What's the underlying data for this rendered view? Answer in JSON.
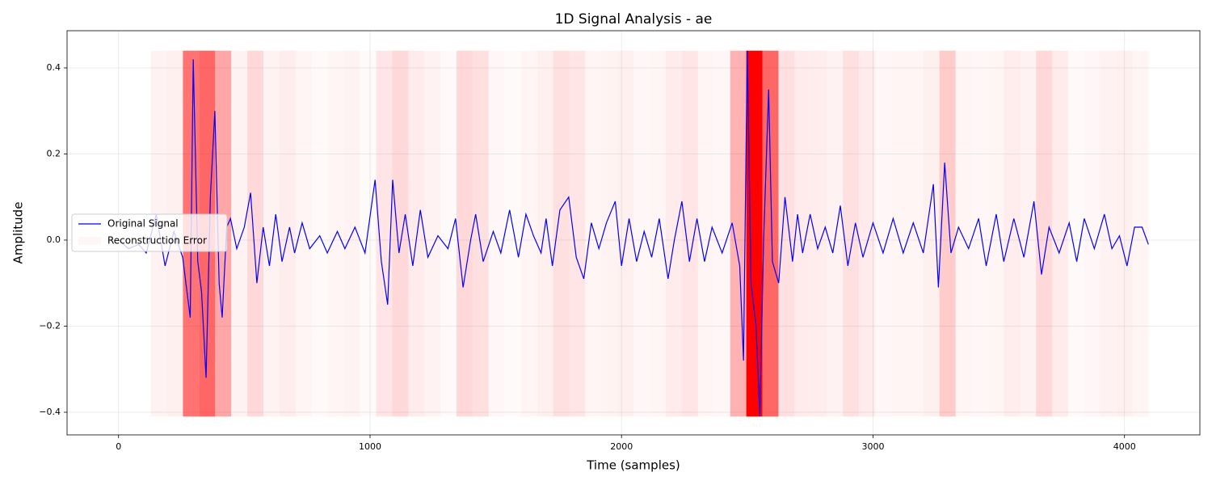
{
  "chart_data": {
    "type": "line",
    "title": "1D Signal Analysis - ae",
    "x_label": "Time (samples)",
    "y_label": "Amplitude",
    "xlim": [
      -204.75,
      4299.75
    ],
    "ylim": [
      -0.4526,
      0.4864
    ],
    "xticks": [
      0,
      1000,
      2000,
      3000,
      4000
    ],
    "yticks": [
      {
        "value": -0.4,
        "label": "−0.4"
      },
      {
        "value": -0.2,
        "label": "−0.2"
      },
      {
        "value": 0,
        "label": "0.0"
      },
      0.2,
      0.4
    ],
    "grid": true,
    "legend": "center left",
    "series": [
      {
        "name": "Original Signal",
        "color": "#0000ff",
        "x": [
          0,
          40,
          80,
          110,
          150,
          185,
          220,
          255,
          285,
          297,
          315,
          330,
          348,
          365,
          383,
          400,
          412,
          430,
          445,
          470,
          500,
          525,
          550,
          575,
          600,
          625,
          650,
          680,
          700,
          730,
          760,
          800,
          830,
          870,
          900,
          940,
          980,
          1020,
          1045,
          1070,
          1090,
          1115,
          1140,
          1170,
          1200,
          1230,
          1270,
          1310,
          1340,
          1370,
          1400,
          1420,
          1450,
          1490,
          1520,
          1555,
          1590,
          1620,
          1650,
          1680,
          1700,
          1725,
          1755,
          1790,
          1820,
          1850,
          1880,
          1910,
          1940,
          1975,
          2000,
          2030,
          2060,
          2090,
          2120,
          2150,
          2185,
          2210,
          2240,
          2270,
          2300,
          2330,
          2360,
          2400,
          2440,
          2470,
          2485,
          2500,
          2515,
          2535,
          2550,
          2565,
          2585,
          2600,
          2625,
          2650,
          2680,
          2700,
          2720,
          2750,
          2780,
          2810,
          2840,
          2870,
          2900,
          2930,
          2960,
          3000,
          3040,
          3080,
          3120,
          3160,
          3200,
          3240,
          3260,
          3285,
          3310,
          3340,
          3380,
          3420,
          3450,
          3490,
          3520,
          3560,
          3600,
          3640,
          3670,
          3700,
          3740,
          3780,
          3810,
          3840,
          3880,
          3920,
          3950,
          3980,
          4010,
          4040,
          4070,
          4095
        ],
        "values": [
          0.0,
          -0.02,
          -0.01,
          -0.03,
          0.06,
          -0.06,
          0.02,
          -0.04,
          -0.18,
          0.42,
          -0.05,
          -0.12,
          -0.32,
          0.1,
          0.3,
          -0.1,
          -0.18,
          0.03,
          0.05,
          -0.02,
          0.03,
          0.11,
          -0.1,
          0.03,
          -0.06,
          0.06,
          -0.05,
          0.03,
          -0.03,
          0.04,
          -0.02,
          0.01,
          -0.03,
          0.02,
          -0.02,
          0.03,
          -0.03,
          0.14,
          -0.05,
          -0.15,
          0.14,
          -0.03,
          0.06,
          -0.06,
          0.07,
          -0.04,
          0.01,
          -0.02,
          0.05,
          -0.11,
          0.0,
          0.06,
          -0.05,
          0.02,
          -0.03,
          0.07,
          -0.04,
          0.06,
          0.01,
          -0.03,
          0.05,
          -0.06,
          0.07,
          0.1,
          -0.04,
          -0.09,
          0.04,
          -0.02,
          0.04,
          0.09,
          -0.06,
          0.05,
          -0.05,
          0.02,
          -0.04,
          0.05,
          -0.09,
          0.0,
          0.09,
          -0.05,
          0.05,
          -0.05,
          0.03,
          -0.03,
          0.04,
          -0.06,
          -0.28,
          0.44,
          -0.1,
          -0.2,
          -0.41,
          0.0,
          0.35,
          -0.05,
          -0.1,
          0.1,
          -0.05,
          0.06,
          -0.03,
          0.06,
          -0.02,
          0.03,
          -0.03,
          0.08,
          -0.06,
          0.04,
          -0.04,
          0.04,
          -0.03,
          0.05,
          -0.03,
          0.04,
          -0.03,
          0.13,
          -0.11,
          0.18,
          -0.03,
          0.03,
          -0.02,
          0.05,
          -0.06,
          0.06,
          -0.05,
          0.05,
          -0.04,
          0.09,
          -0.08,
          0.03,
          -0.03,
          0.04,
          -0.05,
          0.05,
          -0.02,
          0.06,
          -0.02,
          0.01,
          -0.06,
          0.03,
          0.03,
          -0.01
        ]
      },
      {
        "name": "Reconstruction Error",
        "color": "#ff0000",
        "bins": [
          128,
          192,
          256,
          320,
          384,
          448,
          512,
          576,
          640,
          704,
          768,
          832,
          896,
          960,
          1024,
          1088,
          1152,
          1216,
          1280,
          1344,
          1408,
          1472,
          1536,
          1600,
          1664,
          1728,
          1792,
          1856,
          1920,
          1984,
          2048,
          2112,
          2176,
          2240,
          2304,
          2368,
          2432,
          2496,
          2560,
          2624,
          2688,
          2752,
          2816,
          2880,
          2944,
          3008,
          3072,
          3136,
          3200,
          3264,
          3328,
          3392,
          3456,
          3520,
          3584,
          3648,
          3712,
          3776,
          3840,
          3904,
          3968,
          4032,
          4096
        ],
        "values": [
          0.05,
          0.06,
          0.55,
          0.6,
          0.35,
          0.05,
          0.15,
          0.05,
          0.07,
          0.04,
          0.02,
          0.04,
          0.05,
          0.02,
          0.1,
          0.15,
          0.08,
          0.05,
          0.02,
          0.15,
          0.12,
          0.03,
          0.02,
          0.04,
          0.06,
          0.12,
          0.1,
          0.04,
          0.05,
          0.06,
          0.03,
          0.04,
          0.08,
          0.1,
          0.04,
          0.03,
          0.3,
          1.0,
          0.6,
          0.12,
          0.08,
          0.07,
          0.05,
          0.12,
          0.08,
          0.03,
          0.04,
          0.04,
          0.06,
          0.2,
          0.04,
          0.03,
          0.04,
          0.07,
          0.05,
          0.15,
          0.08,
          0.02,
          0.03,
          0.05,
          0.06,
          0.04
        ]
      }
    ]
  }
}
